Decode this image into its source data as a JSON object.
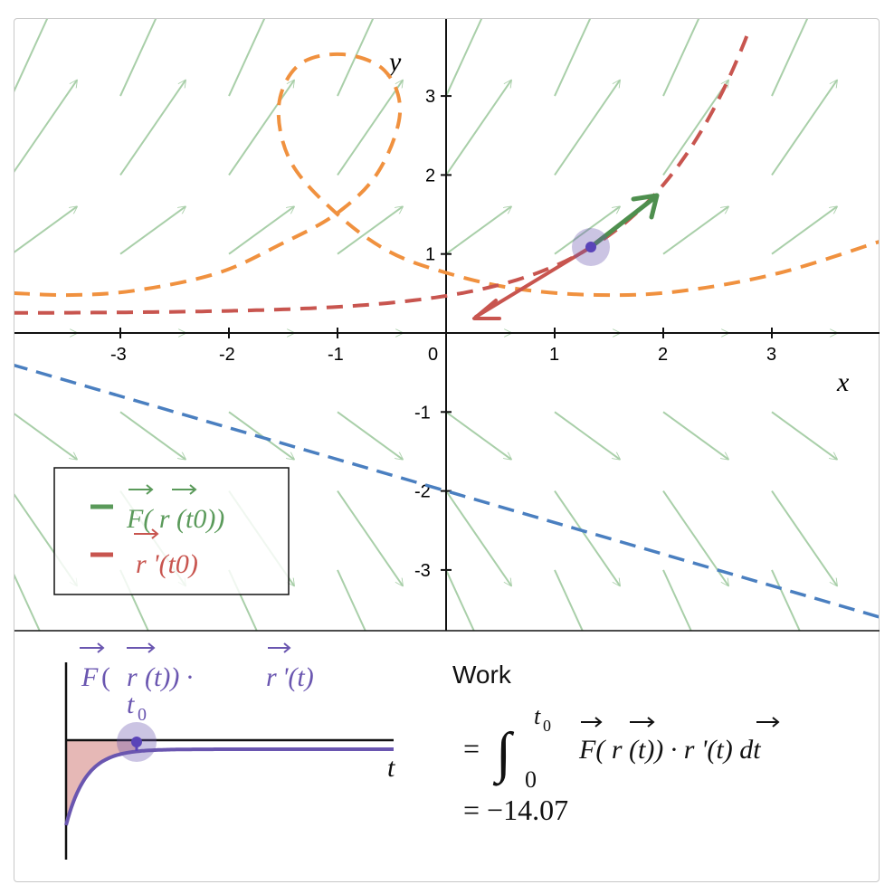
{
  "main_plot": {
    "x_axis_label": "x",
    "y_axis_label": "y",
    "x_ticks": [
      "-3",
      "-2",
      "-1",
      "0",
      "1",
      "2",
      "3"
    ],
    "y_ticks": [
      "3",
      "2",
      "1",
      "-1",
      "-2",
      "-3"
    ],
    "legend": {
      "field_label": "F( r (t0))",
      "field_parts": {
        "F": "F",
        "open": "(",
        "r": "r",
        "arg": "(t",
        "sub": "0",
        "close": "))"
      },
      "derivative_label": "r '(t0)",
      "derivative_parts": {
        "r": "r",
        "prime": "'(t",
        "sub": "0",
        "close": ")"
      }
    },
    "current_point": {
      "x": 1.33,
      "y": 1.09
    }
  },
  "integrand_plot": {
    "title_parts": {
      "F": "F",
      "open": "(",
      "r": "r",
      "mid": "(t)) · ",
      "r2": "r",
      "end": "'(t)"
    },
    "t_label": "t",
    "t0_label": "t",
    "t0_sub": "0"
  },
  "work": {
    "heading": "Work",
    "eq_sign": "=",
    "integral_upper": "t",
    "integral_upper_sub": "0",
    "integral_lower": "0",
    "integrand": "F( r (t)) · r '(t) dt",
    "result": "= −14.07"
  },
  "colors": {
    "field": "#4a9a4a",
    "field_arrow": "#a9cfa9",
    "derivative": "#c8554f",
    "orange_path": "#f0913f",
    "blue_path": "#4a7fc0",
    "integrand": "#6a56b0",
    "point": "#5a44b8"
  }
}
